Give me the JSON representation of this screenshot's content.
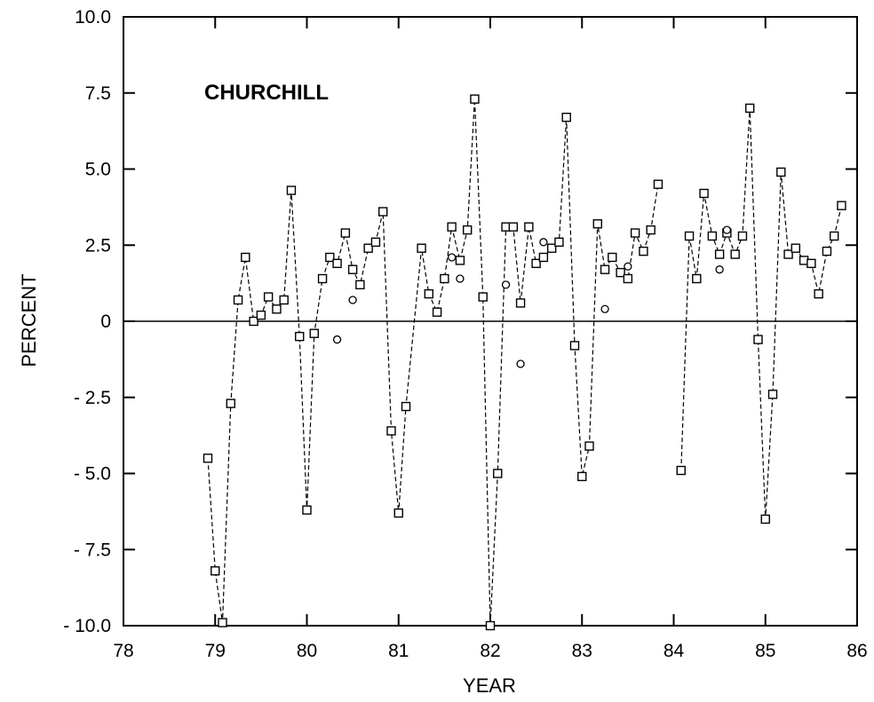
{
  "chart_data": {
    "type": "scatter",
    "title": "CHURCHILL",
    "xlabel": "YEAR",
    "ylabel": "PERCENT",
    "xlim": [
      78,
      86
    ],
    "ylim": [
      -10,
      10
    ],
    "x_ticks": [
      78,
      79,
      80,
      81,
      82,
      83,
      84,
      85,
      86
    ],
    "x_tick_labels": [
      "78",
      "79",
      "80",
      "81",
      "82",
      "83",
      "84",
      "85",
      "86"
    ],
    "y_ticks": [
      -10,
      -7.5,
      -5,
      -2.5,
      0,
      2.5,
      5,
      7.5,
      10
    ],
    "y_tick_labels": [
      "- 10.0",
      "- 7.5",
      "- 5.0",
      "- 2.5",
      "0",
      "2.5",
      "5.0",
      "7.5",
      "10.0"
    ],
    "grid": false,
    "legend": "none",
    "reference_line_y": 0,
    "series": [
      {
        "marker": "square",
        "line_style": "dashed",
        "segments": [
          {
            "x": [
              78.92,
              79.0,
              79.08,
              79.17,
              79.25,
              79.33,
              79.42,
              79.5,
              79.58,
              79.67,
              79.75,
              79.83,
              79.92,
              80.0,
              80.08,
              80.17,
              80.25,
              80.33,
              80.42,
              80.5,
              80.58,
              80.67,
              80.75,
              80.83,
              80.92,
              81.0,
              81.08,
              81.25,
              81.33,
              81.42,
              81.5,
              81.58,
              81.67,
              81.75,
              81.83,
              81.92,
              82.0,
              82.08,
              82.17,
              82.25,
              82.33,
              82.42,
              82.5,
              82.58,
              82.67,
              82.75,
              82.83,
              82.92,
              83.0,
              83.08,
              83.17,
              83.25,
              83.33,
              83.42,
              83.5,
              83.58,
              83.67,
              83.75,
              83.83
            ],
            "y": [
              -4.5,
              -8.2,
              -9.9,
              -2.7,
              0.7,
              2.1,
              0.0,
              0.2,
              0.8,
              0.4,
              0.7,
              4.3,
              -0.5,
              -6.2,
              -0.4,
              1.4,
              2.1,
              1.9,
              2.9,
              1.7,
              1.2,
              2.4,
              2.6,
              3.6,
              -3.6,
              -6.3,
              -2.8,
              2.4,
              0.9,
              0.3,
              1.4,
              3.1,
              2.0,
              3.0,
              7.3,
              0.8,
              -10.0,
              -5.0,
              3.1,
              3.1,
              0.6,
              3.1,
              1.9,
              2.1,
              2.4,
              2.6,
              6.7,
              -0.8,
              -5.1,
              -4.1,
              3.2,
              1.7,
              2.1,
              1.6,
              1.4,
              2.9,
              2.3,
              3.0,
              4.5
            ]
          },
          {
            "x": [
              84.08,
              84.17,
              84.25,
              84.33,
              84.42,
              84.5,
              84.58,
              84.67,
              84.75,
              84.83,
              84.92,
              85.0,
              85.08,
              85.17,
              85.25,
              85.33,
              85.42,
              85.5,
              85.58,
              85.67,
              85.75,
              85.83
            ],
            "y": [
              -4.9,
              2.8,
              1.4,
              4.2,
              2.8,
              2.2,
              2.9,
              2.2,
              2.8,
              7.0,
              -0.6,
              -6.5,
              -2.4,
              4.9,
              2.2,
              2.4,
              2.0,
              1.9,
              0.9,
              2.3,
              2.8,
              3.8
            ]
          }
        ]
      },
      {
        "marker": "circle",
        "x": [
          80.33,
          80.5,
          81.58,
          81.67,
          82.17,
          82.33,
          82.58,
          83.25,
          83.5,
          84.5,
          84.58
        ],
        "y": [
          -0.6,
          0.7,
          2.1,
          1.4,
          1.2,
          -1.4,
          2.6,
          0.4,
          1.8,
          1.7,
          3.0
        ]
      }
    ]
  }
}
